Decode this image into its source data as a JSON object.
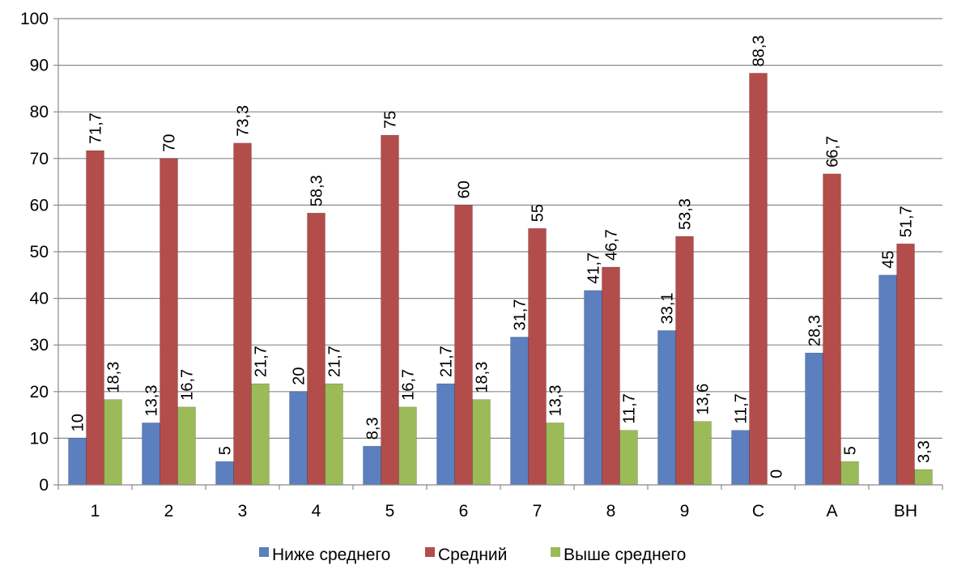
{
  "chart_data": {
    "type": "bar",
    "categories": [
      "1",
      "2",
      "3",
      "4",
      "5",
      "6",
      "7",
      "8",
      "9",
      "C",
      "A",
      "ВН"
    ],
    "series": [
      {
        "name": "Ниже среднего",
        "color": "#5b7fbf",
        "values": [
          10,
          13.3,
          5,
          20,
          8.3,
          21.7,
          31.7,
          41.7,
          33.1,
          11.7,
          28.3,
          45
        ],
        "labels": [
          "10",
          "13,3",
          "5",
          "20",
          "8,3",
          "21,7",
          "31,7",
          "41,7",
          "33,1",
          "11,7",
          "28,3",
          "45"
        ]
      },
      {
        "name": "Средний",
        "color": "#b24d4b",
        "values": [
          71.7,
          70,
          73.3,
          58.3,
          75,
          60,
          55,
          46.7,
          53.3,
          88.3,
          66.7,
          51.7
        ],
        "labels": [
          "71,7",
          "70",
          "73,3",
          "58,3",
          "75",
          "60",
          "55",
          "46,7",
          "53,3",
          "88,3",
          "66,7",
          "51,7"
        ]
      },
      {
        "name": "Выше среднего",
        "color": "#9bbb59",
        "values": [
          18.3,
          16.7,
          21.7,
          21.7,
          16.7,
          18.3,
          13.3,
          11.7,
          13.6,
          0,
          5,
          3.3
        ],
        "labels": [
          "18,3",
          "16,7",
          "21,7",
          "21,7",
          "16,7",
          "18,3",
          "13,3",
          "11,7",
          "13,6",
          "0",
          "5",
          "3,3"
        ]
      }
    ],
    "ylim": [
      0,
      100
    ],
    "yticks": [
      "0",
      "10",
      "20",
      "30",
      "40",
      "50",
      "60",
      "70",
      "80",
      "90",
      "100"
    ],
    "grid": true,
    "legend": "bottom"
  }
}
